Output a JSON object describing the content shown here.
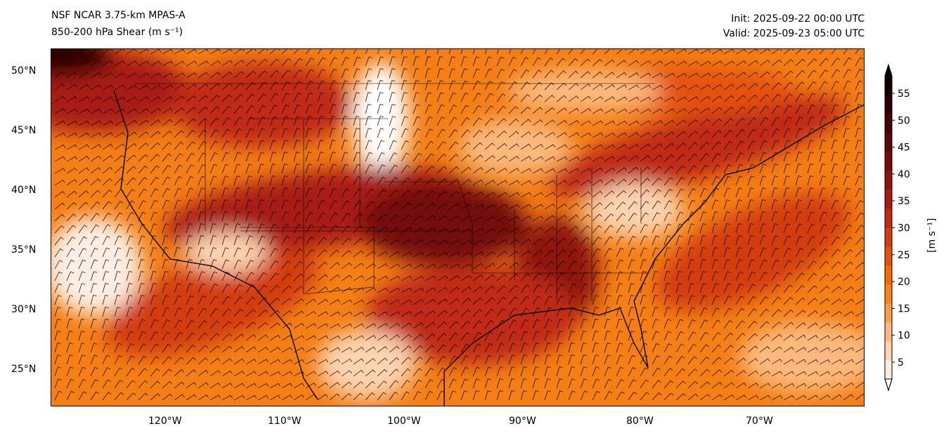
{
  "title_left": {
    "line1": "NSF NCAR 3.75-km MPAS-A",
    "line2": "850-200 hPa Shear (m s⁻¹)"
  },
  "title_right": {
    "init": "Init: 2025-09-22 00:00 UTC",
    "valid": "Valid: 2025-09-23 05:00 UTC"
  },
  "lon_ticks": [
    "120°W",
    "110°W",
    "100°W",
    "90°W",
    "80°W",
    "70°W"
  ],
  "lat_ticks": [
    "50°N",
    "45°N",
    "40°N",
    "35°N",
    "30°N",
    "25°N"
  ],
  "colorbar": {
    "label": "[m s⁻¹]",
    "ticks": [
      "55",
      "50",
      "45",
      "40",
      "35",
      "30",
      "25",
      "20",
      "15",
      "10",
      "5"
    ],
    "colors": [
      "#fdeee3",
      "#fdd3b0",
      "#fdb97d",
      "#fd9d4a",
      "#fb8218",
      "#f46a06",
      "#e5520a",
      "#d33c0f",
      "#c02a14",
      "#a81c12",
      "#8e130d",
      "#740c09",
      "#5a0606",
      "#420303",
      "#2a0101",
      "#120000"
    ]
  }
}
